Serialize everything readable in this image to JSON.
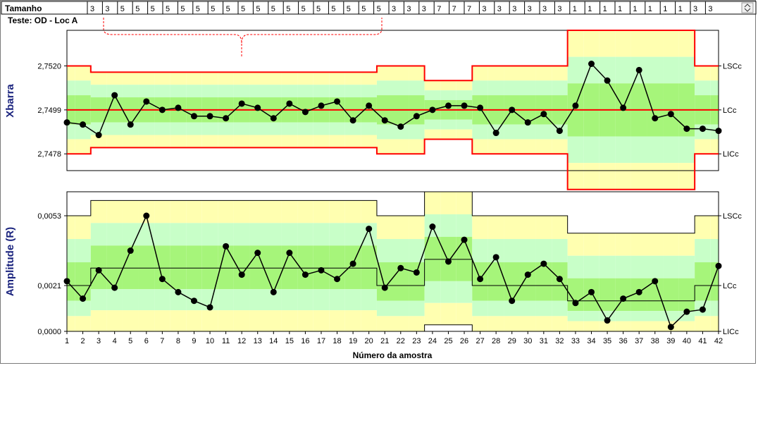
{
  "header": {
    "tamanho_label": "Tamanho",
    "teste_label": "Teste: OD - Loc A"
  },
  "sample_sizes": [
    3,
    3,
    5,
    5,
    5,
    5,
    5,
    5,
    5,
    5,
    5,
    5,
    5,
    5,
    5,
    5,
    5,
    5,
    5,
    5,
    3,
    3,
    3,
    7,
    7,
    7,
    3,
    3,
    3,
    3,
    3,
    3,
    1,
    1,
    1,
    1,
    1,
    1,
    1,
    1,
    3,
    3
  ],
  "colors": {
    "red_limit": "#ff0000",
    "zone_a": "#ffffb0",
    "zone_b": "#c8ffc8",
    "zone_c": "#a6f57a",
    "line": "#000000"
  },
  "chart_data": [
    {
      "type": "line",
      "title": "",
      "ylabel": "Xbarra",
      "xlabel": "",
      "x": [
        1,
        2,
        3,
        4,
        5,
        6,
        7,
        8,
        9,
        10,
        11,
        12,
        13,
        14,
        15,
        16,
        17,
        18,
        19,
        20,
        21,
        22,
        23,
        24,
        25,
        26,
        27,
        28,
        29,
        30,
        31,
        32,
        33,
        34,
        35,
        36,
        37,
        38,
        39,
        40,
        41,
        42
      ],
      "values": [
        2.7493,
        2.7492,
        2.7487,
        2.7506,
        2.7492,
        2.7503,
        2.7499,
        2.75,
        2.7496,
        2.7496,
        2.7495,
        2.7502,
        2.75,
        2.7495,
        2.7502,
        2.7498,
        2.7501,
        2.7503,
        2.7494,
        2.7501,
        2.7494,
        2.7491,
        2.7496,
        2.7499,
        2.7501,
        2.7501,
        2.75,
        2.7488,
        2.7499,
        2.7493,
        2.7497,
        2.7489,
        2.7501,
        2.7521,
        2.7513,
        2.75,
        2.7518,
        2.7495,
        2.7497,
        2.749,
        2.749,
        2.7489
      ],
      "yticks": [
        "2,7520",
        "2,7499",
        "2,7478"
      ],
      "center": 2.7499,
      "ucl": [
        2.752,
        2.752,
        2.7517,
        2.7517,
        2.7517,
        2.7517,
        2.7517,
        2.7517,
        2.7517,
        2.7517,
        2.7517,
        2.7517,
        2.7517,
        2.7517,
        2.7517,
        2.7517,
        2.7517,
        2.7517,
        2.7517,
        2.7517,
        2.752,
        2.752,
        2.752,
        2.7513,
        2.7513,
        2.7513,
        2.752,
        2.752,
        2.752,
        2.752,
        2.752,
        2.752,
        2.7537,
        2.7537,
        2.7537,
        2.7537,
        2.7537,
        2.7537,
        2.7537,
        2.7537,
        2.752,
        2.752
      ],
      "lcl": [
        2.7478,
        2.7478,
        2.7481,
        2.7481,
        2.7481,
        2.7481,
        2.7481,
        2.7481,
        2.7481,
        2.7481,
        2.7481,
        2.7481,
        2.7481,
        2.7481,
        2.7481,
        2.7481,
        2.7481,
        2.7481,
        2.7481,
        2.7481,
        2.7478,
        2.7478,
        2.7478,
        2.7485,
        2.7485,
        2.7485,
        2.7478,
        2.7478,
        2.7478,
        2.7478,
        2.7478,
        2.7478,
        2.7461,
        2.7461,
        2.7461,
        2.7461,
        2.7461,
        2.7461,
        2.7461,
        2.7461,
        2.7478,
        2.7478
      ],
      "ylim": [
        2.747,
        2.7537
      ],
      "limit_labels": [
        "LSCc",
        "LCc",
        "LICc"
      ],
      "grid": false
    },
    {
      "type": "line",
      "title": "",
      "ylabel": "Amplitude (R)",
      "xlabel": "Número da amostra",
      "x": [
        1,
        2,
        3,
        4,
        5,
        6,
        7,
        8,
        9,
        10,
        11,
        12,
        13,
        14,
        15,
        16,
        17,
        18,
        19,
        20,
        21,
        22,
        23,
        24,
        25,
        26,
        27,
        28,
        29,
        30,
        31,
        32,
        33,
        34,
        35,
        36,
        37,
        38,
        39,
        40,
        41,
        42
      ],
      "values": [
        0.0023,
        0.0015,
        0.0028,
        0.002,
        0.0037,
        0.0053,
        0.0024,
        0.0018,
        0.0014,
        0.0011,
        0.0039,
        0.0026,
        0.0036,
        0.0018,
        0.0036,
        0.0026,
        0.0028,
        0.0024,
        0.0031,
        0.0047,
        0.002,
        0.0029,
        0.0027,
        0.0048,
        0.0032,
        0.0042,
        0.0024,
        0.0034,
        0.0014,
        0.0026,
        0.0031,
        0.0024,
        0.0013,
        0.0018,
        0.0005,
        0.0015,
        0.0018,
        0.0023,
        0.0002,
        0.0009,
        0.001,
        0.003
      ],
      "xticks": [
        "1",
        "2",
        "3",
        "4",
        "5",
        "6",
        "7",
        "8",
        "9",
        "10",
        "11",
        "12",
        "13",
        "14",
        "15",
        "16",
        "17",
        "18",
        "19",
        "20",
        "21",
        "22",
        "23",
        "24",
        "25",
        "26",
        "27",
        "28",
        "29",
        "30",
        "31",
        "32",
        "33",
        "34",
        "35",
        "36",
        "37",
        "38",
        "39",
        "40",
        "41",
        "42"
      ],
      "yticks": [
        "0,0053",
        "0,0021",
        "0,0000"
      ],
      "center": [
        0.0021,
        0.0021,
        0.0029,
        0.0029,
        0.0029,
        0.0029,
        0.0029,
        0.0029,
        0.0029,
        0.0029,
        0.0029,
        0.0029,
        0.0029,
        0.0029,
        0.0029,
        0.0029,
        0.0029,
        0.0029,
        0.0029,
        0.0029,
        0.0021,
        0.0021,
        0.0021,
        0.0033,
        0.0033,
        0.0033,
        0.0021,
        0.0021,
        0.0021,
        0.0021,
        0.0021,
        0.0021,
        0.0014,
        0.0014,
        0.0014,
        0.0014,
        0.0014,
        0.0014,
        0.0014,
        0.0014,
        0.0021,
        0.0021
      ],
      "ucl": [
        0.0053,
        0.0053,
        0.006,
        0.006,
        0.006,
        0.006,
        0.006,
        0.006,
        0.006,
        0.006,
        0.006,
        0.006,
        0.006,
        0.006,
        0.006,
        0.006,
        0.006,
        0.006,
        0.006,
        0.006,
        0.0053,
        0.0053,
        0.0053,
        0.0064,
        0.0064,
        0.0064,
        0.0053,
        0.0053,
        0.0053,
        0.0053,
        0.0053,
        0.0053,
        0.0045,
        0.0045,
        0.0045,
        0.0045,
        0.0045,
        0.0045,
        0.0045,
        0.0045,
        0.0053,
        0.0053
      ],
      "lcl": [
        0,
        0,
        0,
        0,
        0,
        0,
        0,
        0,
        0,
        0,
        0,
        0,
        0,
        0,
        0,
        0,
        0,
        0,
        0,
        0,
        0,
        0,
        0,
        0.0003,
        0.0003,
        0.0003,
        0,
        0,
        0,
        0,
        0,
        0,
        0,
        0,
        0,
        0,
        0,
        0,
        0,
        0,
        0,
        0
      ],
      "ylim": [
        0,
        0.0064
      ],
      "limit_labels": [
        "LSCc",
        "LCc",
        "LICc"
      ],
      "grid": false
    }
  ]
}
